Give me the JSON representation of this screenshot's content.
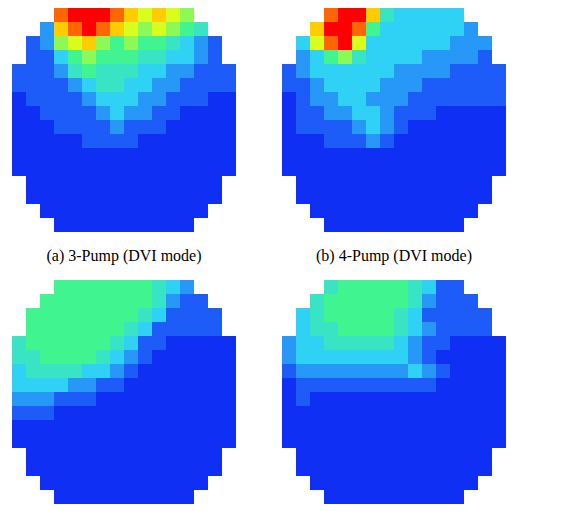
{
  "chart_data": [
    {
      "type": "heatmap",
      "title": "(a) 3-Pump (DVI mode)",
      "zlim": [
        0,
        10
      ],
      "tick_labels": false,
      "cells": [
        [
          null,
          null,
          null,
          9,
          10,
          10,
          10,
          9,
          8,
          7,
          8,
          7,
          6,
          null,
          null,
          null
        ],
        [
          null,
          null,
          2,
          8,
          9,
          10,
          9,
          8,
          7,
          6,
          7,
          6,
          5,
          4,
          null,
          null
        ],
        [
          null,
          1,
          2,
          6,
          7,
          8,
          6,
          5,
          6,
          5,
          5,
          4,
          3,
          2,
          1,
          null
        ],
        [
          null,
          1,
          1,
          3,
          5,
          6,
          5,
          5,
          5,
          4,
          4,
          3,
          3,
          2,
          1,
          null
        ],
        [
          1,
          1,
          1,
          2,
          4,
          5,
          4,
          4,
          4,
          3,
          3,
          2,
          2,
          1,
          1,
          1
        ],
        [
          1,
          1,
          1,
          1,
          2,
          3,
          4,
          4,
          3,
          3,
          2,
          2,
          1,
          1,
          1,
          1
        ],
        [
          0,
          1,
          1,
          1,
          1,
          2,
          3,
          3,
          3,
          2,
          2,
          1,
          1,
          1,
          0,
          0
        ],
        [
          0,
          0,
          1,
          1,
          1,
          1,
          2,
          3,
          2,
          2,
          1,
          1,
          0,
          0,
          0,
          0
        ],
        [
          0,
          0,
          0,
          1,
          1,
          1,
          1,
          2,
          1,
          1,
          1,
          0,
          0,
          0,
          0,
          0
        ],
        [
          0,
          0,
          0,
          0,
          0,
          1,
          1,
          1,
          1,
          0,
          0,
          0,
          0,
          0,
          0,
          0
        ],
        [
          0,
          0,
          0,
          0,
          0,
          0,
          0,
          0,
          0,
          0,
          0,
          0,
          0,
          0,
          0,
          0
        ],
        [
          0,
          0,
          0,
          0,
          0,
          0,
          0,
          0,
          0,
          0,
          0,
          0,
          0,
          0,
          0,
          0
        ],
        [
          null,
          0,
          0,
          0,
          0,
          0,
          0,
          0,
          0,
          0,
          0,
          0,
          0,
          0,
          0,
          null
        ],
        [
          null,
          0,
          0,
          0,
          0,
          0,
          0,
          0,
          0,
          0,
          0,
          0,
          0,
          0,
          0,
          null
        ],
        [
          null,
          null,
          0,
          0,
          0,
          0,
          0,
          0,
          0,
          0,
          0,
          0,
          0,
          0,
          null,
          null
        ],
        [
          null,
          null,
          null,
          0,
          0,
          0,
          0,
          0,
          0,
          0,
          0,
          0,
          0,
          null,
          null,
          null
        ]
      ]
    },
    {
      "type": "heatmap",
      "title": "(b) 4-Pump (DVI mode)",
      "zlim": [
        0,
        10
      ],
      "tick_labels": false,
      "cells": [
        [
          null,
          null,
          null,
          9,
          10,
          10,
          8,
          4,
          3,
          3,
          3,
          3,
          3,
          null,
          null,
          null
        ],
        [
          null,
          null,
          8,
          10,
          10,
          9,
          5,
          3,
          3,
          3,
          3,
          3,
          3,
          2,
          null,
          null
        ],
        [
          null,
          3,
          7,
          9,
          10,
          7,
          3,
          3,
          3,
          3,
          3,
          3,
          2,
          2,
          2,
          null
        ],
        [
          null,
          2,
          3,
          5,
          6,
          4,
          3,
          3,
          3,
          3,
          2,
          2,
          2,
          2,
          1,
          null
        ],
        [
          1,
          2,
          3,
          3,
          3,
          3,
          3,
          3,
          2,
          2,
          2,
          2,
          1,
          1,
          1,
          1
        ],
        [
          1,
          1,
          2,
          3,
          3,
          3,
          3,
          2,
          2,
          2,
          1,
          1,
          1,
          1,
          1,
          1
        ],
        [
          0,
          1,
          2,
          2,
          3,
          3,
          2,
          2,
          2,
          1,
          1,
          1,
          1,
          1,
          1,
          1
        ],
        [
          0,
          1,
          1,
          2,
          2,
          3,
          3,
          2,
          1,
          1,
          1,
          0,
          0,
          0,
          0,
          0
        ],
        [
          0,
          1,
          1,
          1,
          1,
          2,
          3,
          2,
          1,
          0,
          0,
          0,
          0,
          0,
          0,
          0
        ],
        [
          0,
          0,
          0,
          1,
          1,
          1,
          2,
          1,
          0,
          0,
          0,
          0,
          0,
          0,
          0,
          0
        ],
        [
          0,
          0,
          0,
          0,
          0,
          0,
          0,
          0,
          0,
          0,
          0,
          0,
          0,
          0,
          0,
          0
        ],
        [
          0,
          0,
          0,
          0,
          0,
          0,
          0,
          0,
          0,
          0,
          0,
          0,
          0,
          0,
          0,
          0
        ],
        [
          null,
          0,
          0,
          0,
          0,
          0,
          0,
          0,
          0,
          0,
          0,
          0,
          0,
          0,
          0,
          null
        ],
        [
          null,
          0,
          0,
          0,
          0,
          0,
          0,
          0,
          0,
          0,
          0,
          0,
          0,
          0,
          0,
          null
        ],
        [
          null,
          null,
          0,
          0,
          0,
          0,
          0,
          0,
          0,
          0,
          0,
          0,
          0,
          0,
          null,
          null
        ],
        [
          null,
          null,
          null,
          0,
          0,
          0,
          0,
          0,
          0,
          0,
          0,
          0,
          0,
          null,
          null,
          null
        ]
      ]
    },
    {
      "type": "heatmap",
      "zlim": [
        0,
        10
      ],
      "tick_labels": false,
      "cells": [
        [
          null,
          null,
          null,
          5,
          5,
          5,
          5,
          5,
          5,
          5,
          4,
          3,
          2,
          null,
          null,
          null
        ],
        [
          null,
          null,
          5,
          5,
          5,
          5,
          5,
          5,
          5,
          5,
          4,
          2,
          1,
          1,
          null,
          null
        ],
        [
          null,
          5,
          5,
          5,
          5,
          5,
          5,
          5,
          5,
          4,
          3,
          1,
          1,
          1,
          1,
          null
        ],
        [
          null,
          5,
          5,
          5,
          5,
          5,
          5,
          5,
          4,
          3,
          1,
          1,
          1,
          1,
          1,
          null
        ],
        [
          4,
          5,
          5,
          5,
          5,
          5,
          5,
          4,
          3,
          1,
          1,
          0,
          0,
          0,
          0,
          0
        ],
        [
          4,
          4,
          5,
          5,
          5,
          5,
          4,
          3,
          2,
          1,
          0,
          0,
          0,
          0,
          0,
          0
        ],
        [
          3,
          4,
          4,
          4,
          4,
          3,
          3,
          2,
          1,
          0,
          0,
          0,
          0,
          0,
          0,
          0
        ],
        [
          3,
          3,
          3,
          3,
          2,
          2,
          1,
          1,
          0,
          0,
          0,
          0,
          0,
          0,
          0,
          0
        ],
        [
          2,
          2,
          2,
          1,
          1,
          1,
          0,
          0,
          0,
          0,
          0,
          0,
          0,
          0,
          0,
          0
        ],
        [
          1,
          1,
          1,
          0,
          0,
          0,
          0,
          0,
          0,
          0,
          0,
          0,
          0,
          0,
          0,
          0
        ],
        [
          0,
          0,
          0,
          0,
          0,
          0,
          0,
          0,
          0,
          0,
          0,
          0,
          0,
          0,
          0,
          0
        ],
        [
          0,
          0,
          0,
          0,
          0,
          0,
          0,
          0,
          0,
          0,
          0,
          0,
          0,
          0,
          0,
          0
        ],
        [
          null,
          0,
          0,
          0,
          0,
          0,
          0,
          0,
          0,
          0,
          0,
          0,
          0,
          0,
          0,
          null
        ],
        [
          null,
          0,
          0,
          0,
          0,
          0,
          0,
          0,
          0,
          0,
          0,
          0,
          0,
          0,
          0,
          null
        ],
        [
          null,
          null,
          0,
          0,
          0,
          0,
          0,
          0,
          0,
          0,
          0,
          0,
          0,
          0,
          null,
          null
        ],
        [
          null,
          null,
          null,
          0,
          0,
          0,
          0,
          0,
          0,
          0,
          0,
          0,
          0,
          null,
          null,
          null
        ]
      ]
    },
    {
      "type": "heatmap",
      "zlim": [
        0,
        10
      ],
      "tick_labels": false,
      "cells": [
        [
          null,
          null,
          null,
          4,
          5,
          5,
          5,
          5,
          5,
          4,
          3,
          1,
          1,
          null,
          null,
          null
        ],
        [
          null,
          null,
          4,
          5,
          5,
          5,
          5,
          5,
          5,
          4,
          2,
          1,
          1,
          1,
          null,
          null
        ],
        [
          null,
          3,
          4,
          5,
          5,
          5,
          5,
          5,
          4,
          3,
          1,
          1,
          1,
          1,
          1,
          null
        ],
        [
          null,
          3,
          4,
          4,
          5,
          5,
          5,
          5,
          4,
          3,
          2,
          1,
          1,
          1,
          1,
          null
        ],
        [
          2,
          3,
          3,
          4,
          4,
          4,
          4,
          4,
          3,
          2,
          1,
          1,
          0,
          0,
          0,
          0
        ],
        [
          2,
          3,
          3,
          3,
          3,
          3,
          3,
          3,
          3,
          2,
          1,
          0,
          0,
          0,
          0,
          0
        ],
        [
          1,
          2,
          2,
          2,
          2,
          2,
          2,
          2,
          2,
          3,
          2,
          1,
          0,
          0,
          0,
          0
        ],
        [
          0,
          1,
          1,
          1,
          1,
          1,
          1,
          1,
          1,
          1,
          1,
          0,
          0,
          0,
          0,
          0
        ],
        [
          0,
          1,
          0,
          0,
          0,
          0,
          0,
          0,
          0,
          0,
          0,
          0,
          0,
          0,
          0,
          0
        ],
        [
          0,
          0,
          0,
          0,
          0,
          0,
          0,
          0,
          0,
          0,
          0,
          0,
          0,
          0,
          0,
          0
        ],
        [
          0,
          0,
          0,
          0,
          0,
          0,
          0,
          0,
          0,
          0,
          0,
          0,
          0,
          0,
          0,
          0
        ],
        [
          0,
          0,
          0,
          0,
          0,
          0,
          0,
          0,
          0,
          0,
          0,
          0,
          0,
          0,
          0,
          0
        ],
        [
          null,
          0,
          0,
          0,
          0,
          0,
          0,
          0,
          0,
          0,
          0,
          0,
          0,
          0,
          0,
          null
        ],
        [
          null,
          0,
          0,
          0,
          0,
          0,
          0,
          0,
          0,
          0,
          0,
          0,
          0,
          0,
          0,
          null
        ],
        [
          null,
          null,
          0,
          0,
          0,
          0,
          0,
          0,
          0,
          0,
          0,
          0,
          0,
          0,
          null,
          null
        ],
        [
          null,
          null,
          null,
          0,
          0,
          0,
          0,
          0,
          0,
          0,
          0,
          0,
          0,
          null,
          null,
          null
        ]
      ]
    }
  ]
}
